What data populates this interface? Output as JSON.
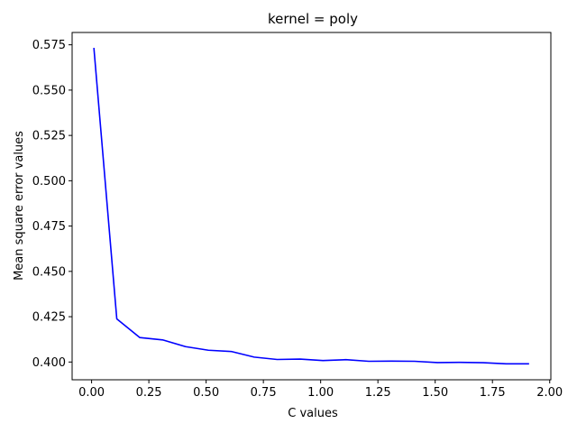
{
  "chart_data": {
    "type": "line",
    "title": "kernel = poly",
    "xlabel": "C values",
    "ylabel": "Mean square error values",
    "xlim": [
      -0.085,
      2.005
    ],
    "ylim": [
      0.3902,
      0.5818
    ],
    "xticks": [
      0.0,
      0.25,
      0.5,
      0.75,
      1.0,
      1.25,
      1.5,
      1.75,
      2.0
    ],
    "xtick_labels": [
      "0.00",
      "0.25",
      "0.50",
      "0.75",
      "1.00",
      "1.25",
      "1.50",
      "1.75",
      "2.00"
    ],
    "yticks": [
      0.4,
      0.425,
      0.45,
      0.475,
      0.5,
      0.525,
      0.55,
      0.575
    ],
    "ytick_labels": [
      "0.400",
      "0.425",
      "0.450",
      "0.475",
      "0.500",
      "0.525",
      "0.550",
      "0.575"
    ],
    "grid": false,
    "series": [
      {
        "color": "#0000ff",
        "x": [
          0.01,
          0.11,
          0.21,
          0.31,
          0.41,
          0.51,
          0.61,
          0.71,
          0.81,
          0.91,
          1.01,
          1.11,
          1.21,
          1.31,
          1.41,
          1.51,
          1.61,
          1.71,
          1.81,
          1.91
        ],
        "y": [
          0.5733,
          0.4238,
          0.4135,
          0.4122,
          0.4085,
          0.4065,
          0.4058,
          0.4027,
          0.4014,
          0.4016,
          0.4008,
          0.4013,
          0.4004,
          0.4005,
          0.4004,
          0.3997,
          0.3998,
          0.3996,
          0.399,
          0.399
        ]
      }
    ]
  }
}
